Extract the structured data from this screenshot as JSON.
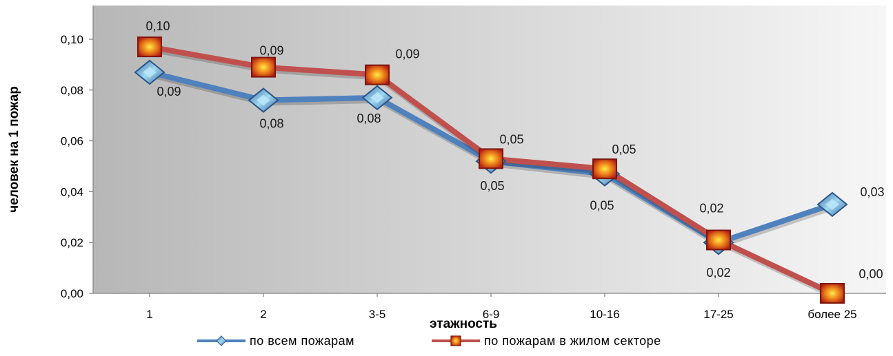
{
  "chart_data": {
    "type": "line",
    "categories": [
      "1",
      "2",
      "3-5",
      "6-9",
      "10-16",
      "17-25",
      "более 25"
    ],
    "xlabel": "этажность",
    "ylabel": "человек на 1 пожар",
    "ylim": [
      0,
      0.1
    ],
    "yticks": [
      "0,00",
      "0,02",
      "0,04",
      "0,06",
      "0,08",
      "0,10"
    ],
    "grid": false,
    "legend_position": "bottom",
    "series": [
      {
        "name": "по всем пожарам",
        "color": "#4f81bd",
        "marker": "diamond",
        "values": [
          0.087,
          0.076,
          0.077,
          0.052,
          0.047,
          0.02,
          0.035
        ],
        "labels": [
          "0,09",
          "0,08",
          "0,08",
          "0,05",
          "0,05",
          "0,02",
          "0,03"
        ]
      },
      {
        "name": "по пожарам в жилом секторе",
        "color": "#c0504d",
        "marker": "square",
        "values": [
          0.097,
          0.089,
          0.086,
          0.053,
          0.049,
          0.021,
          0.0
        ],
        "labels": [
          "0,10",
          "0,09",
          "0,09",
          "0,05",
          "0,05",
          "0,02",
          "0,00"
        ]
      }
    ]
  }
}
